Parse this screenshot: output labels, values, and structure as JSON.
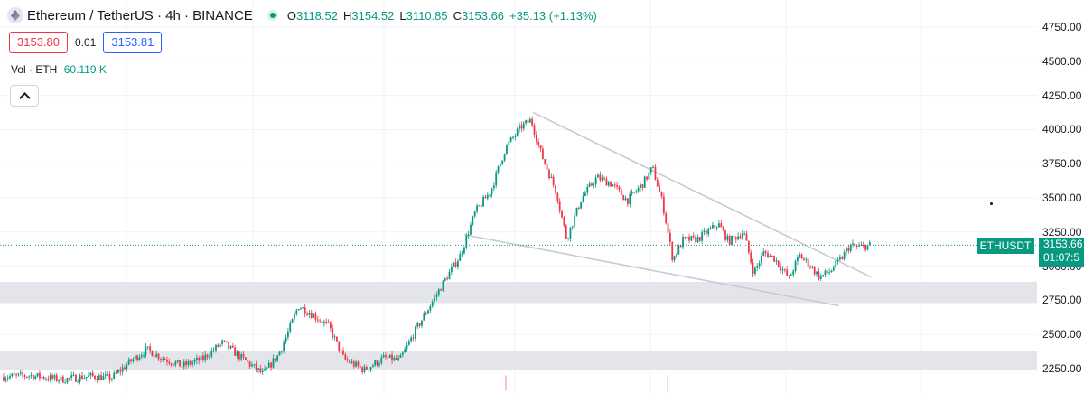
{
  "header": {
    "symbol": "Ethereum / TetherUS · 4h · BINANCE",
    "open_label": "O",
    "open": "3118.52",
    "high_label": "H",
    "high": "3154.52",
    "low_label": "L",
    "low": "3110.85",
    "close_label": "C",
    "close": "3153.66",
    "change": "+35.13 (+1.13%)"
  },
  "trade": {
    "sell": "3153.80",
    "spread": "0.01",
    "buy": "3153.81"
  },
  "volume": {
    "label": "Vol · ETH",
    "value": "60.119 K"
  },
  "price_scale": {
    "labels": [
      "4750.00",
      "4500.00",
      "4250.00",
      "4000.00",
      "3750.00",
      "3500.00",
      "3250.00",
      "3000.00",
      "2750.00",
      "2500.00",
      "2250.00"
    ]
  },
  "last_price": {
    "symbol": "ETHUSDT",
    "price": "3153.66",
    "countdown": "01:07:5"
  },
  "colors": {
    "up": "#089981",
    "down": "#f23645",
    "zone": "#e4e5ea",
    "trendline": "#c9cad1",
    "grid": "#f0f3fa"
  },
  "chart_data": {
    "type": "candlestick",
    "title": "Ethereum / TetherUS · 4h · BINANCE",
    "xlabel": "",
    "ylabel": "",
    "ylim": [
      2200,
      4850
    ],
    "grid": true,
    "last_price": 3153.66,
    "zones": [
      {
        "low": 2730,
        "high": 2885
      },
      {
        "low": 2240,
        "high": 2380
      }
    ],
    "trendlines": [
      {
        "from": [
          0.527,
          4125
        ],
        "to": [
          0.861,
          2920
        ]
      },
      {
        "from": [
          0.459,
          3230
        ],
        "to": [
          0.829,
          2710
        ]
      }
    ],
    "path": [
      [
        0.0,
        2190
      ],
      [
        0.03,
        2200
      ],
      [
        0.06,
        2170
      ],
      [
        0.09,
        2195
      ],
      [
        0.11,
        2180
      ],
      [
        0.13,
        2310
      ],
      [
        0.145,
        2390
      ],
      [
        0.16,
        2330
      ],
      [
        0.18,
        2270
      ],
      [
        0.2,
        2320
      ],
      [
        0.22,
        2440
      ],
      [
        0.24,
        2320
      ],
      [
        0.26,
        2210
      ],
      [
        0.275,
        2350
      ],
      [
        0.285,
        2520
      ],
      [
        0.295,
        2710
      ],
      [
        0.31,
        2640
      ],
      [
        0.325,
        2560
      ],
      [
        0.34,
        2320
      ],
      [
        0.36,
        2240
      ],
      [
        0.38,
        2330
      ],
      [
        0.395,
        2310
      ],
      [
        0.41,
        2520
      ],
      [
        0.425,
        2710
      ],
      [
        0.44,
        2900
      ],
      [
        0.455,
        3080
      ],
      [
        0.47,
        3400
      ],
      [
        0.485,
        3550
      ],
      [
        0.5,
        3870
      ],
      [
        0.515,
        4020
      ],
      [
        0.525,
        4070
      ],
      [
        0.535,
        3820
      ],
      [
        0.55,
        3540
      ],
      [
        0.56,
        3200
      ],
      [
        0.575,
        3500
      ],
      [
        0.59,
        3650
      ],
      [
        0.605,
        3600
      ],
      [
        0.62,
        3480
      ],
      [
        0.635,
        3600
      ],
      [
        0.645,
        3720
      ],
      [
        0.655,
        3460
      ],
      [
        0.665,
        3050
      ],
      [
        0.675,
        3190
      ],
      [
        0.69,
        3200
      ],
      [
        0.71,
        3310
      ],
      [
        0.72,
        3180
      ],
      [
        0.735,
        3250
      ],
      [
        0.745,
        2950
      ],
      [
        0.755,
        3100
      ],
      [
        0.765,
        3060
      ],
      [
        0.78,
        2910
      ],
      [
        0.79,
        3080
      ],
      [
        0.8,
        3010
      ],
      [
        0.81,
        2920
      ],
      [
        0.82,
        2960
      ],
      [
        0.83,
        3040
      ],
      [
        0.84,
        3150
      ],
      [
        0.85,
        3140
      ],
      [
        0.86,
        3153.66
      ]
    ],
    "spikes": [
      {
        "at": 0.5,
        "low": 2090,
        "high": 2200
      },
      {
        "at": 0.66,
        "low": 2050,
        "high": 2200
      }
    ]
  }
}
